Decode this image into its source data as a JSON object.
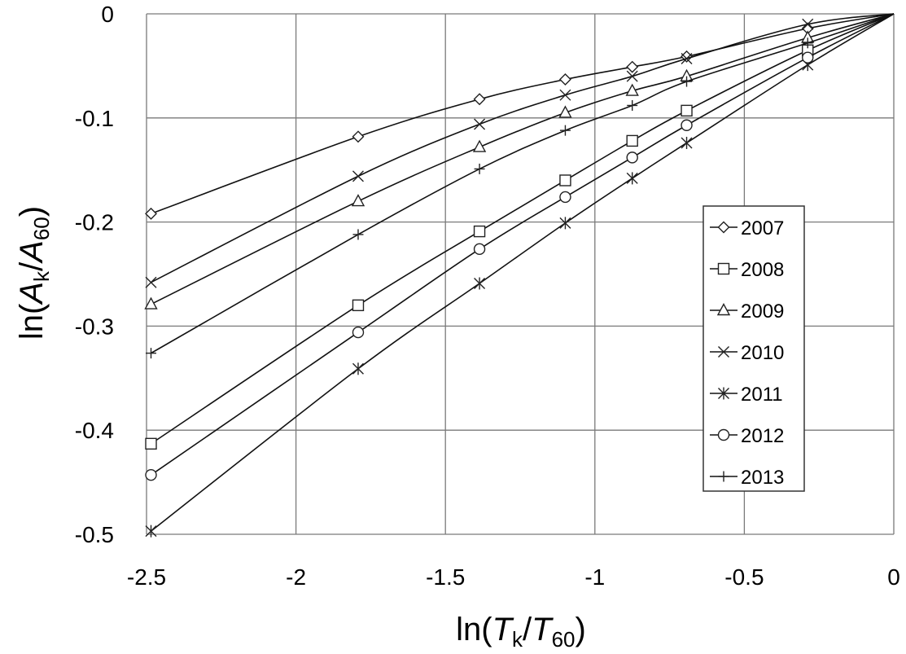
{
  "chart_data": {
    "type": "line",
    "xlabel": {
      "prefix": "ln(",
      "var1": "T",
      "sub1": "k",
      "mid": "/",
      "var2": "T",
      "sub2": "60",
      "suffix": ")"
    },
    "ylabel": {
      "prefix": "ln(",
      "var1": "A",
      "sub1": "k",
      "mid": "/",
      "var2": "A",
      "sub2": "60",
      "suffix": ")"
    },
    "xlim": [
      -2.5,
      0
    ],
    "ylim": [
      -0.5,
      0
    ],
    "xticks": [
      "-2.5",
      "-2",
      "-1.5",
      "-1",
      "-0.5",
      "0"
    ],
    "yticks": [
      "0",
      "-0.1",
      "-0.2",
      "-0.3",
      "-0.4",
      "-0.5"
    ],
    "grid": true,
    "legend_position": "right",
    "x": [
      -2.485,
      -1.792,
      -1.386,
      -1.099,
      -0.875,
      -0.693,
      -0.288,
      0
    ],
    "series": [
      {
        "name": "2007",
        "marker": "diamond",
        "values": [
          -0.192,
          -0.118,
          -0.082,
          -0.063,
          -0.051,
          -0.041,
          -0.014,
          0
        ]
      },
      {
        "name": "2008",
        "marker": "square",
        "values": [
          -0.413,
          -0.28,
          -0.209,
          -0.16,
          -0.122,
          -0.093,
          -0.035,
          0
        ]
      },
      {
        "name": "2009",
        "marker": "triangle",
        "values": [
          -0.279,
          -0.18,
          -0.128,
          -0.095,
          -0.074,
          -0.06,
          -0.023,
          0
        ]
      },
      {
        "name": "2010",
        "marker": "x",
        "values": [
          -0.258,
          -0.156,
          -0.106,
          -0.078,
          -0.06,
          -0.043,
          -0.01,
          0
        ]
      },
      {
        "name": "2011",
        "marker": "asterisk",
        "values": [
          -0.497,
          -0.341,
          -0.259,
          -0.201,
          -0.158,
          -0.124,
          -0.049,
          0
        ]
      },
      {
        "name": "2012",
        "marker": "circle",
        "values": [
          -0.443,
          -0.306,
          -0.226,
          -0.176,
          -0.138,
          -0.107,
          -0.042,
          0
        ]
      },
      {
        "name": "2013",
        "marker": "plus",
        "values": [
          -0.326,
          -0.212,
          -0.149,
          -0.112,
          -0.088,
          -0.065,
          -0.028,
          0
        ]
      }
    ]
  }
}
